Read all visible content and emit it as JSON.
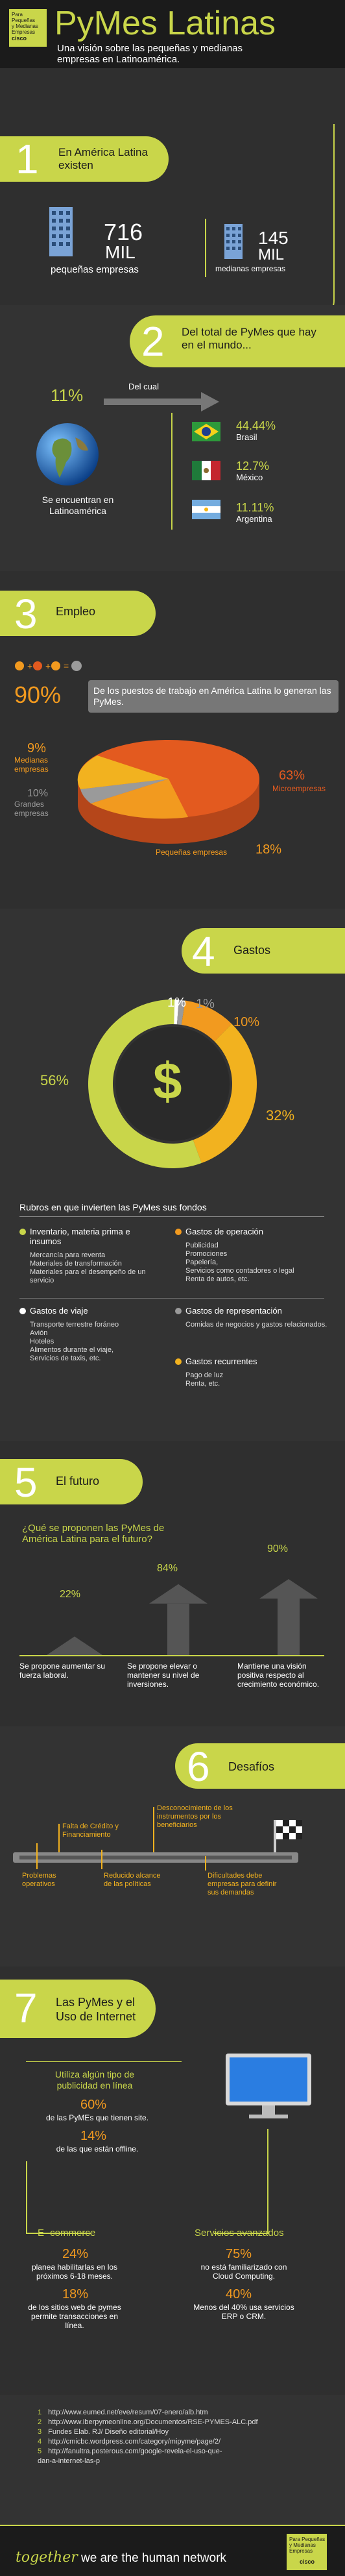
{
  "header": {
    "logo_lines": [
      "Para Pequeñas",
      "y Medianas",
      "Empresas"
    ],
    "logo_brand": "cisco",
    "title": "PyMes Latinas",
    "subtitle": "Una visión sobre las pequeñas y medianas empresas en Latinoamérica."
  },
  "s1": {
    "num": "1",
    "title_l1": "En América Latina",
    "title_l2": "existen",
    "big_value": "716",
    "big_unit": "MIL",
    "big_label": "pequeñas empresas",
    "med_value": "145",
    "med_unit": "MIL",
    "med_label": "medianas empresas"
  },
  "s2": {
    "num": "2",
    "title": "Del total de PyMes que hay en el mundo...",
    "pct": "11%",
    "del_cual": "Del cual",
    "world_label": "Se encuentran en Latinoamérica",
    "countries": [
      {
        "pct": "44.44%",
        "name": "Brasil"
      },
      {
        "pct": "12.7%",
        "name": "México"
      },
      {
        "pct": "11.11%",
        "name": "Argentina"
      }
    ]
  },
  "s3": {
    "num": "3",
    "title": "Empleo",
    "pct": "90%",
    "text": "De los puestos de trabajo en América Latina lo generan las PyMes.",
    "pie": [
      {
        "value": "9%",
        "label": "Medianas empresas",
        "color": "#f29a1f"
      },
      {
        "value": "10%",
        "label": "Grandes empresas",
        "color": "#9a9a9a"
      },
      {
        "value": "63%",
        "label": "Microempresas",
        "color": "#e35a1f"
      },
      {
        "value": "18%",
        "label": "Pequeñas empresas",
        "color": "#f29a1f"
      }
    ]
  },
  "s4": {
    "num": "4",
    "title": "Gastos",
    "donut": [
      {
        "value": "56%",
        "fraction": 0.56,
        "color": "#c9d64a"
      },
      {
        "value": "32%",
        "fraction": 0.32,
        "color": "#f2b21f"
      },
      {
        "value": "10%",
        "fraction": 0.1,
        "color": "#f29a1f"
      },
      {
        "value": "1%",
        "fraction": 0.01,
        "color": "#9a9a9a"
      },
      {
        "value": "1%",
        "fraction": 0.01,
        "color": "#ffffff"
      }
    ],
    "currency": "$",
    "rubros_title": "Rubros en que invierten las PyMes sus fondos",
    "rubros": [
      {
        "title": "Inventario, materia prima e insumos",
        "color": "#c9d64a",
        "items": [
          "Mercancía para reventa",
          "Materiales de transformación",
          "Materiales para el desempeño de un servicio"
        ]
      },
      {
        "title": "Gastos de operación",
        "color": "#f29a1f",
        "items": [
          "Publicidad",
          "Promociones",
          "Papelería,",
          "Servicios como contadores o legal",
          "Renta de autos, etc."
        ]
      },
      {
        "title": "Gastos de viaje",
        "color": "#ffffff",
        "items": [
          "Transporte terrestre foráneo",
          "Avión",
          "Hoteles",
          "Alimentos durante el viaje,",
          "Servicios de taxis, etc."
        ]
      },
      {
        "title": "Gastos de representación",
        "color": "#9a9a9a",
        "items": [
          "Comidas de negocios y gastos relacionados."
        ]
      },
      {
        "title": "Gastos recurrentes",
        "color": "#f2b21f",
        "items": [
          "Pago de luz",
          "Renta, etc."
        ]
      }
    ]
  },
  "s5": {
    "num": "5",
    "title": "El futuro",
    "question": "¿Qué se proponen las PyMes de América Latina para el futuro?",
    "bars": [
      {
        "value": "22%",
        "text": "Se propone aumentar su fuerza laboral."
      },
      {
        "value": "84%",
        "text": "Se propone elevar o mantener su nivel de inversiones."
      },
      {
        "value": "90%",
        "text": "Mantiene una visión positiva respecto al crecimiento económico."
      }
    ]
  },
  "s6": {
    "num": "6",
    "title": "Desafíos",
    "items": [
      "Problemas operativos",
      "Falta de Crédito y Financiamiento",
      "Reducido alcance de las políticas",
      "Desconocimiento de los instrumentos por los beneficiarios",
      "Dificultades debe empresas para definir sus demandas"
    ]
  },
  "s7": {
    "num": "7",
    "title_l1": "Las PyMes y el",
    "title_l2": "Uso de Internet",
    "ads_title": "Utiliza algún tipo de publicidad en línea",
    "ads": [
      {
        "value": "60%",
        "text": "de las PyMEs que tienen site."
      },
      {
        "value": "14%",
        "text": "de las que están offline."
      }
    ],
    "ecommerce_title": "E- commerce",
    "ecommerce": [
      {
        "value": "24%",
        "text": "planea habilitarlas en los próximos 6-18 meses."
      },
      {
        "value": "18%",
        "text": "de los sitios web de pymes permite transacciones en línea."
      }
    ],
    "services_title": "Servicios avanzados",
    "services": [
      {
        "value": "75%",
        "text": "no está familiarizado con Cloud Computing."
      },
      {
        "value": "40%",
        "text": "Menos del 40% usa servicios ERP o CRM."
      }
    ]
  },
  "refs": [
    {
      "n": "1",
      "url": "http://www.eumed.net/eve/resum/07-enero/alb.htm"
    },
    {
      "n": "2",
      "url": "http://www.iberpymeonline.org/Documentos/RSE-PYMES-ALC.pdf"
    },
    {
      "n": "3",
      "url": "Fundes Elab. RJ/ Diseño editorial/Hoy"
    },
    {
      "n": "4",
      "url": "http://cmicbc.wordpress.com/category/mipyme/page/2/"
    },
    {
      "n": "5",
      "url": "http://fanultra.posterous.com/google-revela-el-uso-que-dan-a-internet-las-p"
    }
  ],
  "footer": {
    "tagline_script": "together",
    "tagline": "we are the human network",
    "logo_lines": [
      "Para Pequeñas",
      "y Medianas",
      "Empresas"
    ],
    "logo_brand": "cisco"
  }
}
